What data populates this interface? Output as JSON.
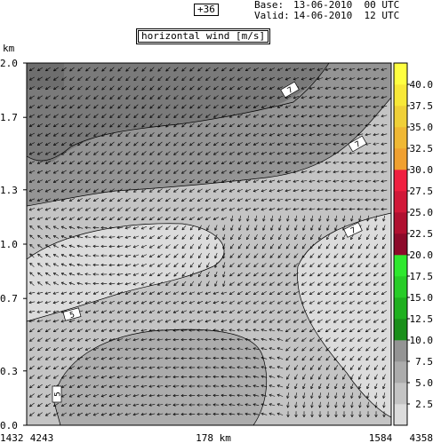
{
  "header": {
    "forecast_step": "+36",
    "base_label": "Base:",
    "base_value": "13-06-2010  00 UTC",
    "valid_label": "Valid:",
    "valid_value": "14-06-2010  12 UTC",
    "title": "horizontal wind [m/s]"
  },
  "chart_data": {
    "type": "heatmap",
    "title": "horizontal wind [m/s]",
    "ylabel": "km",
    "y_ticks": [
      "0.0",
      "0.3",
      "0.7",
      "1.0",
      "1.3",
      "1.7",
      "2.0"
    ],
    "y_tick_values": [
      0.0,
      0.3,
      0.7,
      1.0,
      1.3,
      1.7,
      2.0
    ],
    "ylim": [
      0.0,
      2.0
    ],
    "x_labels": {
      "left_outer": "1432",
      "left_inner": "4243",
      "center": "178 km",
      "right_inner": "1584",
      "right_outer": "4358"
    },
    "colorbar": {
      "levels": [
        "2.5",
        "5.0",
        "7.5",
        "10.0",
        "12.5",
        "15.0",
        "17.5",
        "20.0",
        "22.5",
        "25.0",
        "27.5",
        "30.0",
        "32.5",
        "35.0",
        "37.5",
        "40.0"
      ],
      "colors": [
        "#dcdcdc",
        "#c4c4c4",
        "#acacac",
        "#949494",
        "#1a8f1a",
        "#1fb01f",
        "#28cc28",
        "#2ee82e",
        "#8c0a2a",
        "#b01030",
        "#d11838",
        "#f02040",
        "#f0a030",
        "#f0b834",
        "#f0d038",
        "#f8e838",
        "#ffff40"
      ]
    },
    "field_shading": {
      "background_band": "2.5-5.0",
      "upper_region": "7.5-10.0",
      "top_left_core": "10.0-12.5",
      "middle_band": "2.5-5.0",
      "low_core": "5.0-7.5",
      "calm_pockets": "0-2.5"
    },
    "contour_labels": [
      "7",
      "7",
      "7",
      "5",
      "5",
      "7",
      "7"
    ],
    "grid": false
  },
  "colors": {
    "axis": "#000000",
    "arrow": "#000000",
    "label_box": "#ffffff"
  }
}
